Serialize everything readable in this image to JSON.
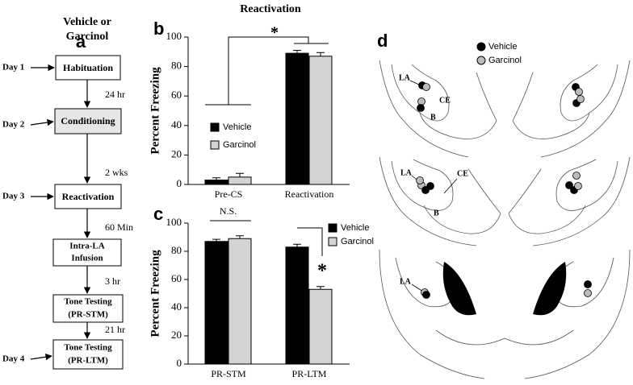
{
  "flowchart": {
    "label": "a",
    "header": [
      "Vehicle or",
      "Garcinol"
    ],
    "steps": [
      {
        "day": "Day 1",
        "lines": [
          "Habituation"
        ]
      },
      {
        "day": "Day 2",
        "lines": [
          "Conditioning"
        ]
      },
      {
        "day": "Day 3",
        "lines": [
          "Reactivation"
        ]
      },
      {
        "lines": [
          "Intra-LA",
          "Infusion"
        ]
      },
      {
        "lines": [
          "Tone Testing",
          "(PR-STM)"
        ]
      },
      {
        "day": "Day 4",
        "lines": [
          "Tone Testing",
          "(PR-LTM)"
        ]
      }
    ],
    "intervals": [
      "24 hr",
      "2 wks",
      "60 Min",
      "3 hr",
      "21 hr"
    ]
  },
  "chart_data": [
    {
      "type": "bar",
      "panel": "b",
      "title": "Reactivation",
      "y_label": "Percent Freezing",
      "categories": [
        "Pre-CS",
        "Reactivation"
      ],
      "series": [
        {
          "name": "Vehicle",
          "color": "#000000",
          "values": [
            3,
            89
          ],
          "errors": [
            1.5,
            2
          ]
        },
        {
          "name": "Garcinol",
          "color": "#d3d3d3",
          "values": [
            5,
            87
          ],
          "errors": [
            2.5,
            2.5
          ]
        }
      ],
      "ylim": [
        0,
        100
      ],
      "yticks": [
        0,
        20,
        40,
        60,
        80,
        100
      ],
      "annotations": [
        "*"
      ]
    },
    {
      "type": "bar",
      "panel": "c",
      "y_label": "Percent Freezing",
      "categories": [
        "PR-STM",
        "PR-LTM"
      ],
      "series": [
        {
          "name": "Vehicle",
          "color": "#000000",
          "values": [
            87,
            83
          ],
          "errors": [
            1.5,
            2
          ]
        },
        {
          "name": "Garcinol",
          "color": "#d3d3d3",
          "values": [
            89,
            53
          ],
          "errors": [
            2,
            2
          ]
        }
      ],
      "ylim": [
        0,
        100
      ],
      "yticks": [
        0,
        20,
        40,
        60,
        80,
        100
      ],
      "annotations": [
        "N.S.",
        "*"
      ]
    }
  ],
  "sites": {
    "label": "d",
    "legend": [
      "Vehicle",
      "Garcinol"
    ],
    "regions": [
      "LA",
      "CE",
      "B",
      "LA",
      "CE",
      "B",
      "LA"
    ]
  }
}
